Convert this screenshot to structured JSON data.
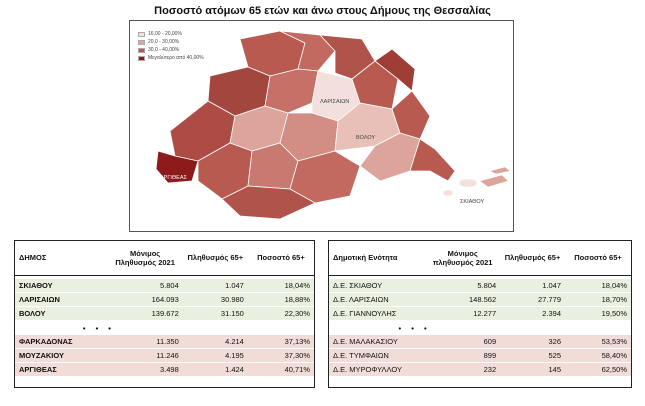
{
  "title": "Ποσοστό ατόμων 65 ετών και άνω στους Δήμους της Θεσσαλίας",
  "map": {
    "legend": [
      {
        "label": "16,00 - 20,00%",
        "color": "#f3e0dc"
      },
      {
        "label": "20,0 - 30,00%",
        "color": "#dca49a"
      },
      {
        "label": "30,0 - 40,00%",
        "color": "#b85a50"
      },
      {
        "label": "Μεγαλύτερο από 40,00%",
        "color": "#8e1b1b"
      }
    ],
    "place_labels": [
      "ΛΑΡΙΣΑΙΩΝ",
      "ΒΟΛΟΥ",
      "ΣΚΙΑΘΟΥ",
      "ΑΡΓΙΘΕΑΣ"
    ]
  },
  "left_table": {
    "headers": [
      "ΔΗΜΟΣ",
      "Μόνιμος Πληθυσμός 2021",
      "Πληθυσμός 65+",
      "Ποσοστό 65+"
    ],
    "top_rows": [
      [
        "ΣΚΙΑΘΟΥ",
        "5.804",
        "1.047",
        "18,04%"
      ],
      [
        "ΛΑΡΙΣΑΙΩΝ",
        "164.093",
        "30.980",
        "18,88%"
      ],
      [
        "ΒΟΛΟΥ",
        "139.672",
        "31.150",
        "22,30%"
      ]
    ],
    "dots": "• • •",
    "bottom_rows": [
      [
        "ΦΑΡΚΑΔΟΝΑΣ",
        "11.350",
        "4.214",
        "37,13%"
      ],
      [
        "ΜΟΥΖΑΚΙΟΥ",
        "11.246",
        "4.195",
        "37,30%"
      ],
      [
        "ΑΡΓΙΘΕΑΣ",
        "3.498",
        "1.424",
        "40,71%"
      ]
    ]
  },
  "right_table": {
    "headers": [
      "Δημοτική Ενότητα",
      "Μόνιμος πληθυσμός 2021",
      "Πληθυσμός 65+",
      "Ποσοστό 65+"
    ],
    "top_rows": [
      [
        "Δ.Ε. ΣΚΙΑΘΟΥ",
        "5.804",
        "1.047",
        "18,04%"
      ],
      [
        "Δ.Ε. ΛΑΡΙΣΑΙΩΝ",
        "148.562",
        "27.779",
        "18,70%"
      ],
      [
        "Δ.Ε. ΓΙΑΝΝΟΥΛΗΣ",
        "12.277",
        "2.394",
        "19,50%"
      ]
    ],
    "dots": "• • •",
    "bottom_rows": [
      [
        "Δ.Ε. ΜΑΛΑΚΑΣΙΟΥ",
        "609",
        "326",
        "53,53%"
      ],
      [
        "Δ.Ε. ΤΥΜΦΑΙΩΝ",
        "899",
        "525",
        "58,40%"
      ],
      [
        "Δ.Ε. ΜΥΡΟΦΥΛΛΟΥ",
        "232",
        "145",
        "62,50%"
      ]
    ]
  }
}
